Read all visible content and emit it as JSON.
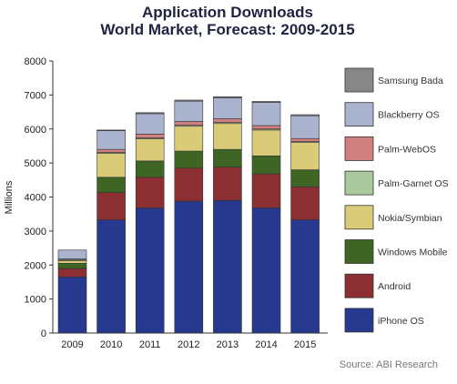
{
  "chart_data": {
    "type": "bar",
    "stacked": true,
    "title": "Application Downloads",
    "subtitle": "World Market, Forecast: 2009-2015",
    "xlabel": "",
    "ylabel": "Millions",
    "ylim": [
      0,
      8000
    ],
    "yticks": [
      0,
      1000,
      2000,
      3000,
      4000,
      5000,
      6000,
      7000,
      8000
    ],
    "grid": false,
    "legend_position": "right",
    "source": "Source: ABI Research",
    "categories": [
      "2009",
      "2010",
      "2011",
      "2012",
      "2013",
      "2014",
      "2015"
    ],
    "series": [
      {
        "name": "iPhone OS",
        "color": "#27388f",
        "values": [
          1650,
          3330,
          3680,
          3880,
          3900,
          3680,
          3330
        ]
      },
      {
        "name": "Android",
        "color": "#8b2f33",
        "values": [
          250,
          800,
          900,
          970,
          980,
          1000,
          970
        ]
      },
      {
        "name": "Windows Mobile",
        "color": "#3e6524",
        "values": [
          150,
          450,
          480,
          500,
          520,
          530,
          500
        ]
      },
      {
        "name": "Nokia/Symbian",
        "color": "#dacb79",
        "values": [
          80,
          700,
          650,
          730,
          760,
          760,
          800
        ]
      },
      {
        "name": "Palm-Garnet OS",
        "color": "#a9c89d",
        "values": [
          30,
          30,
          30,
          30,
          30,
          30,
          30
        ]
      },
      {
        "name": "Palm-WebOS",
        "color": "#d0807e",
        "values": [
          20,
          90,
          110,
          110,
          110,
          100,
          90
        ]
      },
      {
        "name": "Blackberry OS",
        "color": "#aab3cd",
        "values": [
          260,
          550,
          600,
          600,
          620,
          680,
          670
        ]
      },
      {
        "name": "Samsung Bada",
        "color": "#888888",
        "values": [
          0,
          20,
          30,
          30,
          30,
          30,
          30
        ]
      }
    ]
  }
}
